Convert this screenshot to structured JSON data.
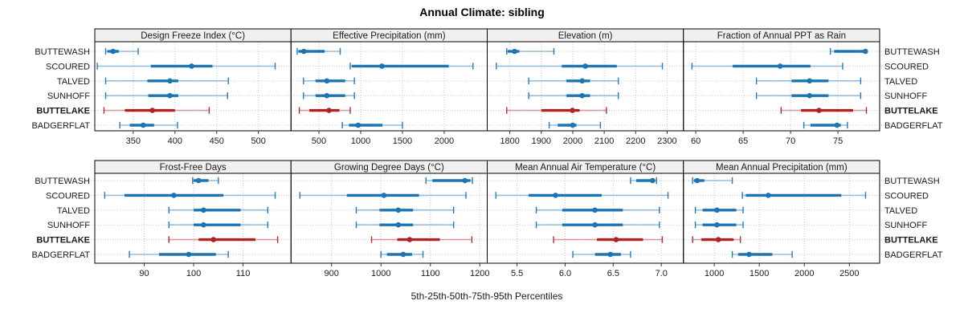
{
  "chart_data": {
    "type": "dotplot-intervals",
    "title": "Annual Climate: sibling",
    "xlabel": "5th-25th-50th-75th-95th Percentiles",
    "percentile_labels": [
      "5th",
      "25th",
      "50th",
      "75th",
      "95th"
    ],
    "sites": [
      "BUTTEWASH",
      "SCOURED",
      "TALVED",
      "SUNHOFF",
      "BUTTELAKE",
      "BADGERFLAT"
    ],
    "highlight_site": "BUTTELAKE",
    "colors": {
      "series": "#1b74b4",
      "highlight": "#b22222",
      "strip_bg": "#f0f0f0",
      "panel_border": "#000000",
      "gridline": "#c6c6c6",
      "row_guide": "#c3cbd2",
      "text": "#1a1a1a"
    },
    "legend_position": "none",
    "grid": true,
    "layout_rows": [
      [
        "Design Freeze Index (°C)",
        "Effective Precipitation (mm)",
        "Elevation (m)",
        "Fraction of Annual PPT as Rain"
      ],
      [
        "Frost-Free Days",
        "Growing Degree Days (°C)",
        "Mean Annual Air Temperature (°C)",
        "Mean Annual Precipitation (mm)"
      ]
    ],
    "panels": [
      {
        "label": "Design Freeze Index (°C)",
        "row": 0,
        "col": 0,
        "xlim": [
          304,
          539
        ],
        "ticks": [
          350,
          400,
          450,
          500
        ],
        "tick_labels": [
          "350",
          "400",
          "450",
          "500"
        ],
        "values": {
          "BUTTEWASH": [
            317,
            319,
            326,
            333,
            356
          ],
          "SCOURED": [
            307,
            371,
            420,
            445,
            520
          ],
          "TALVED": [
            317,
            367,
            394,
            404,
            464
          ],
          "SUNHOFF": [
            317,
            368,
            394,
            404,
            463
          ],
          "BUTTELAKE": [
            315,
            340,
            373,
            400,
            441
          ],
          "BADGERFLAT": [
            334,
            346,
            362,
            375,
            403
          ]
        }
      },
      {
        "label": "Effective Precipitation (mm)",
        "row": 0,
        "col": 1,
        "xlim": [
          166,
          2515
        ],
        "ticks": [
          500,
          1000,
          1500,
          2000
        ],
        "tick_labels": [
          "500",
          "1000",
          "1500",
          "2000"
        ],
        "values": {
          "BUTTEWASH": [
            240,
            255,
            320,
            570,
            755
          ],
          "SCOURED": [
            875,
            895,
            1255,
            2055,
            2345
          ],
          "TALVED": [
            315,
            460,
            595,
            815,
            925
          ],
          "SUNHOFF": [
            315,
            460,
            595,
            815,
            925
          ],
          "BUTTELAKE": [
            265,
            385,
            620,
            745,
            875
          ],
          "BADGERFLAT": [
            780,
            860,
            970,
            1260,
            1500
          ]
        }
      },
      {
        "label": "Elevation (m)",
        "row": 0,
        "col": 2,
        "xlim": [
          1728,
          2352
        ],
        "ticks": [
          1800,
          1900,
          2000,
          2100,
          2200,
          2300
        ],
        "tick_labels": [
          "1800",
          "1900",
          "2000",
          "2100",
          "2200",
          "2300"
        ],
        "values": {
          "BUTTEWASH": [
            1790,
            1793,
            1815,
            1830,
            1940
          ],
          "SCOURED": [
            1757,
            1965,
            2040,
            2140,
            2285
          ],
          "TALVED": [
            1860,
            1980,
            2030,
            2055,
            2145
          ],
          "SUNHOFF": [
            1860,
            1980,
            2030,
            2055,
            2145
          ],
          "BUTTELAKE": [
            1790,
            1900,
            1999,
            2022,
            2107
          ],
          "BADGERFLAT": [
            1925,
            1952,
            2000,
            2012,
            2088
          ]
        }
      },
      {
        "label": "Fraction of Annual PPT as Rain",
        "row": 0,
        "col": 3,
        "xlim": [
          58.7,
          79.4
        ],
        "ticks": [
          60,
          65,
          70,
          75
        ],
        "tick_labels": [
          "60",
          "65",
          "70",
          "75"
        ],
        "values": {
          "BUTTEWASH": [
            74.2,
            74.6,
            77.9,
            77.9,
            77.9
          ],
          "SCOURED": [
            59.6,
            63.9,
            68.9,
            72.1,
            75.5
          ],
          "TALVED": [
            66.4,
            70.1,
            72.0,
            74.0,
            77.4
          ],
          "SUNHOFF": [
            66.4,
            70.1,
            72.0,
            74.0,
            77.4
          ],
          "BUTTELAKE": [
            69.0,
            71.1,
            73.0,
            76.6,
            78.0
          ],
          "BADGERFLAT": [
            71.4,
            72.1,
            74.9,
            75.3,
            76.0
          ]
        }
      },
      {
        "label": "Frost-Free Days",
        "row": 1,
        "col": 0,
        "xlim": [
          80,
          119.7
        ],
        "ticks": [
          90,
          100,
          110
        ],
        "tick_labels": [
          "90",
          "100",
          "110"
        ],
        "values": {
          "BUTTEWASH": [
            99.8,
            100,
            101,
            103,
            105
          ],
          "SCOURED": [
            82,
            86,
            96,
            106,
            116.5
          ],
          "TALVED": [
            95,
            100,
            102,
            109.5,
            115
          ],
          "SUNHOFF": [
            95,
            100,
            102,
            109.5,
            115
          ],
          "BUTTELAKE": [
            95,
            101,
            104,
            112.5,
            117
          ],
          "BADGERFLAT": [
            87,
            93,
            99,
            104.5,
            107
          ]
        }
      },
      {
        "label": "Growing Degree Days (°C)",
        "row": 1,
        "col": 1,
        "xlim": [
          818,
          1215
        ],
        "ticks": [
          900,
          1000,
          1100,
          1200
        ],
        "tick_labels": [
          "900",
          "1000",
          "1100",
          "1200"
        ],
        "values": {
          "BUTTEWASH": [
            1091,
            1104,
            1170,
            1181,
            1185
          ],
          "SCOURED": [
            836,
            931,
            1006,
            1077,
            1172
          ],
          "TALVED": [
            950,
            997,
            1035,
            1065,
            1147
          ],
          "SUNHOFF": [
            950,
            997,
            1035,
            1065,
            1147
          ],
          "BUTTELAKE": [
            981,
            1033,
            1058,
            1119,
            1184
          ],
          "BADGERFLAT": [
            1000,
            1012,
            1045,
            1063,
            1085
          ]
        }
      },
      {
        "label": "Mean Annual Air Temperature (°C)",
        "row": 1,
        "col": 2,
        "xlim": [
          5.19,
          7.23
        ],
        "ticks": [
          5.5,
          6.0,
          6.5,
          7.0
        ],
        "tick_labels": [
          "5.5",
          "6.0",
          "6.5",
          "7.0"
        ],
        "values": {
          "BUTTEWASH": [
            6.68,
            6.74,
            6.91,
            6.93,
            6.95
          ],
          "SCOURED": [
            5.28,
            5.62,
            5.9,
            6.38,
            7.07
          ],
          "TALVED": [
            5.7,
            5.97,
            6.31,
            6.6,
            6.98
          ],
          "SUNHOFF": [
            5.7,
            5.97,
            6.31,
            6.6,
            6.98
          ],
          "BUTTELAKE": [
            5.88,
            6.33,
            6.53,
            6.81,
            7.01
          ],
          "BADGERFLAT": [
            6.08,
            6.31,
            6.47,
            6.58,
            6.68
          ]
        }
      },
      {
        "label": "Mean Annual Precipitation (mm)",
        "row": 1,
        "col": 3,
        "xlim": [
          658,
          2836
        ],
        "ticks": [
          1000,
          1500,
          2000,
          2500
        ],
        "tick_labels": [
          "1000",
          "1500",
          "2000",
          "2500"
        ],
        "values": {
          "BUTTEWASH": [
            760,
            775,
            810,
            890,
            1200
          ],
          "SCOURED": [
            1312,
            1350,
            1600,
            2410,
            2680
          ],
          "TALVED": [
            790,
            870,
            1030,
            1245,
            1320
          ],
          "SUNHOFF": [
            790,
            870,
            1030,
            1245,
            1320
          ],
          "BUTTELAKE": [
            760,
            857,
            1045,
            1215,
            1290
          ],
          "BADGERFLAT": [
            1200,
            1265,
            1387,
            1645,
            1865
          ]
        }
      }
    ]
  }
}
